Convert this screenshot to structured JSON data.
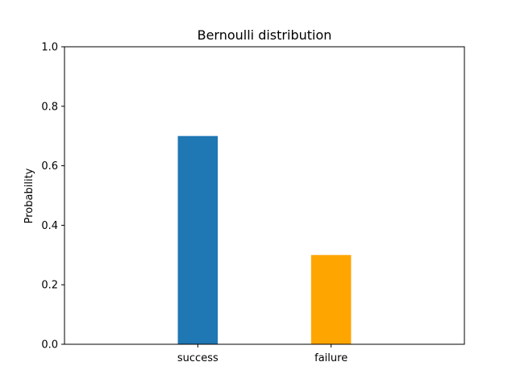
{
  "chart_data": {
    "type": "bar",
    "title": "Bernoulli distribution",
    "xlabel": "",
    "ylabel": "Probability",
    "categories": [
      "success",
      "failure"
    ],
    "values": [
      0.7,
      0.3
    ],
    "colors": [
      "#1f77b4",
      "#ffa500"
    ],
    "ylim": [
      0,
      1.0
    ],
    "yticks": [
      0.0,
      0.2,
      0.4,
      0.6,
      0.8,
      1.0
    ],
    "ytick_labels": [
      "0.0",
      "0.2",
      "0.4",
      "0.6",
      "0.8",
      "1.0"
    ],
    "grid": false,
    "legend": "none"
  }
}
